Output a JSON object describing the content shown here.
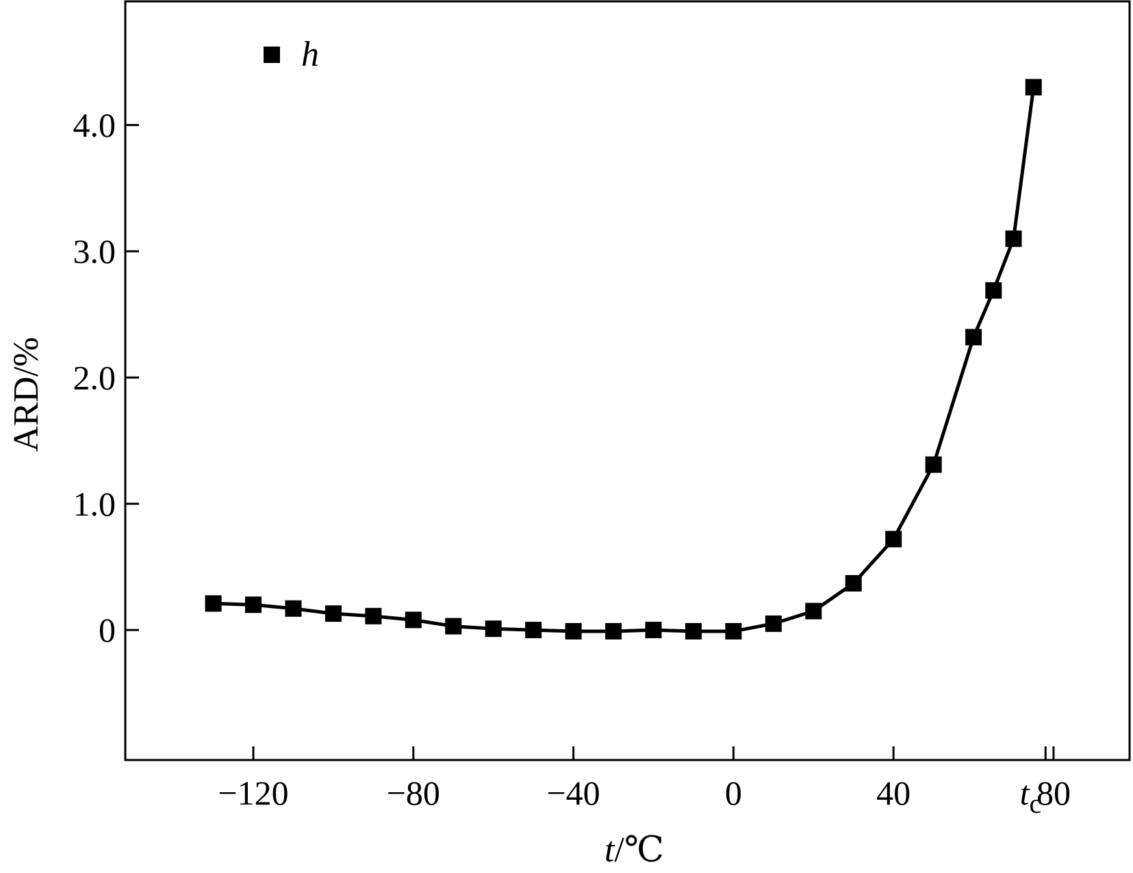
{
  "chart_data": {
    "type": "line",
    "title": "",
    "xlabel": "t/℃",
    "xlabel_var": "t",
    "xlabel_unit": "/℃",
    "ylabel": "ARD/%",
    "xlim": [
      -152,
      99
    ],
    "ylim": [
      -1.03,
      4.98
    ],
    "xticks": [
      {
        "value": -120,
        "label": "−120"
      },
      {
        "value": -80,
        "label": "−80"
      },
      {
        "value": -40,
        "label": "−40"
      },
      {
        "value": 0,
        "label": "0"
      },
      {
        "value": 40,
        "label": "40"
      },
      {
        "value": 80,
        "label": "80"
      }
    ],
    "extra_xtick": {
      "value": 78,
      "label": "t",
      "subscript": "c"
    },
    "yticks": [
      {
        "value": 0,
        "label": "0"
      },
      {
        "value": 1.0,
        "label": "1.0"
      },
      {
        "value": 2.0,
        "label": "2.0"
      },
      {
        "value": 3.0,
        "label": "3.0"
      },
      {
        "value": 4.0,
        "label": "4.0"
      }
    ],
    "grid": false,
    "legend_position": "top-left",
    "series": [
      {
        "name": "h",
        "marker": "square",
        "color": "#000000",
        "x": [
          -130,
          -120,
          -110,
          -100,
          -90,
          -80,
          -70,
          -60,
          -50,
          -40,
          -30,
          -20,
          -10,
          0,
          10,
          20,
          30,
          40,
          50,
          60,
          65,
          70,
          75
        ],
        "y": [
          0.21,
          0.2,
          0.17,
          0.13,
          0.11,
          0.08,
          0.03,
          0.01,
          0.0,
          -0.01,
          -0.01,
          0.0,
          -0.01,
          -0.01,
          0.05,
          0.15,
          0.37,
          0.72,
          1.31,
          2.32,
          2.69,
          3.1,
          4.3
        ]
      }
    ]
  }
}
